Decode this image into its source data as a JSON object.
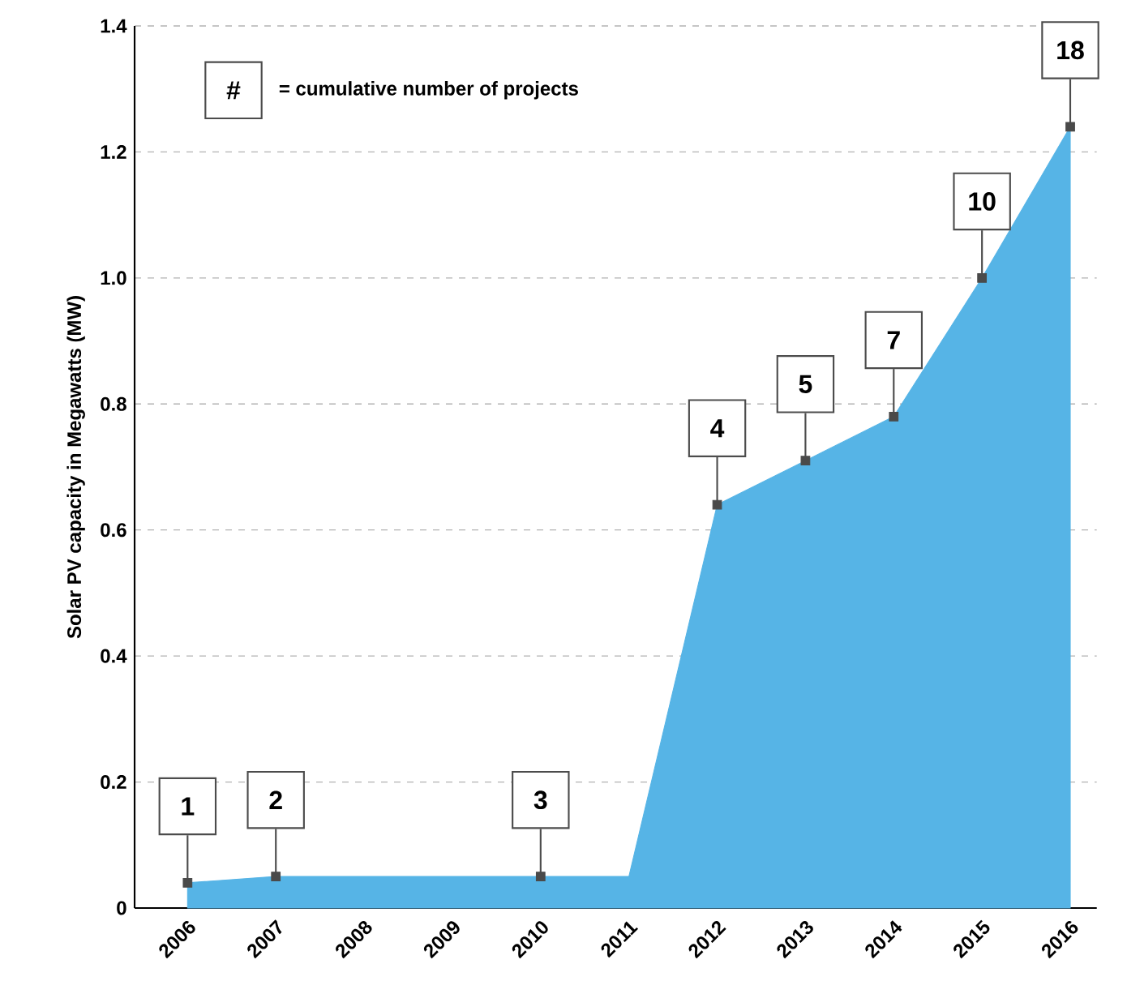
{
  "chart_data": {
    "type": "area",
    "ylabel": "Solar PV capacity in Megawatts (MW)",
    "categories": [
      "2006",
      "2007",
      "2008",
      "2009",
      "2010",
      "2011",
      "2012",
      "2013",
      "2014",
      "2015",
      "2016"
    ],
    "series": [
      {
        "color": "#56b4e6",
        "values": [
          0.04,
          0.05,
          0.05,
          0.05,
          0.05,
          0.05,
          0.64,
          0.71,
          0.78,
          1.0,
          1.24
        ]
      },
      {
        "type": "scatter",
        "color": "#4a4a4a",
        "marker": "square",
        "values": [
          0.04,
          0.05,
          null,
          null,
          0.05,
          null,
          0.64,
          0.71,
          0.78,
          1.0,
          1.24
        ]
      }
    ],
    "ylim": [
      0,
      1.4
    ],
    "yticks": [
      0,
      0.2,
      0.4,
      0.6,
      0.8,
      {
        "value": 1.0,
        "label": "1.0"
      },
      1.2,
      1.4
    ],
    "grid": "y",
    "annotations": [
      "#",
      "= cumulative number of projects",
      {
        "text": "1",
        "x": "2006",
        "y": 0.04
      },
      {
        "text": "2",
        "x": "2007",
        "y": 0.05
      },
      {
        "text": "3",
        "x": "2010",
        "y": 0.05
      },
      {
        "text": "4",
        "x": "2012",
        "y": 0.64
      },
      {
        "text": "5",
        "x": "2013",
        "y": 0.71
      },
      {
        "text": "7",
        "x": "2014",
        "y": 0.78
      },
      {
        "text": "10",
        "x": "2015",
        "y": 1.0
      },
      {
        "text": "18",
        "x": "2016",
        "y": 1.24
      }
    ]
  }
}
